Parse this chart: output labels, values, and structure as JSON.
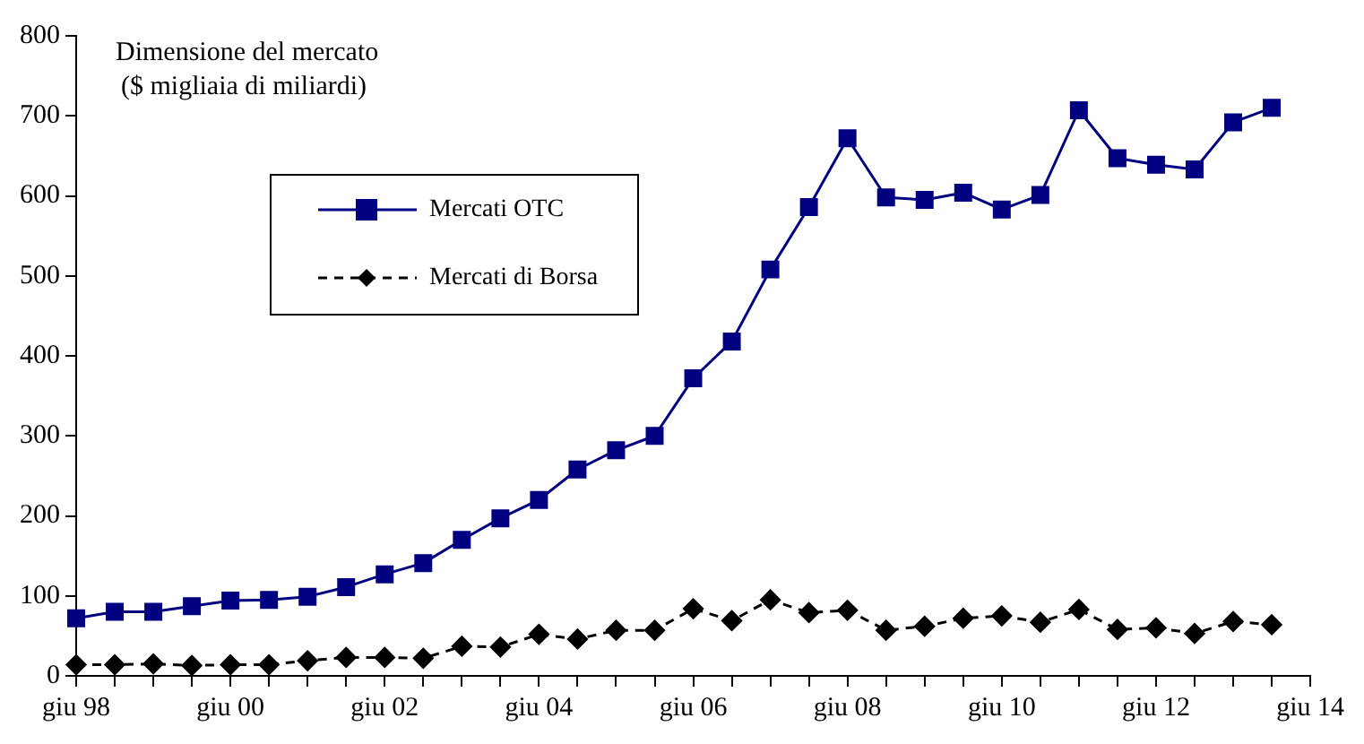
{
  "chart_data": {
    "type": "line",
    "ylabel": "Dimensione del mercato\n($ migliaia di miliardi)",
    "x": [
      "1998-06",
      "1998-12",
      "1999-06",
      "1999-12",
      "2000-06",
      "2000-12",
      "2001-06",
      "2001-12",
      "2002-06",
      "2002-12",
      "2003-06",
      "2003-12",
      "2004-06",
      "2004-12",
      "2005-06",
      "2005-12",
      "2006-06",
      "2006-12",
      "2007-06",
      "2007-12",
      "2008-06",
      "2008-12",
      "2009-06",
      "2009-12",
      "2010-06",
      "2010-12",
      "2011-06",
      "2011-12",
      "2012-06",
      "2012-12",
      "2013-06",
      "2013-12"
    ],
    "series": [
      {
        "name": "Mercati OTC",
        "color": "#000080",
        "marker": "square",
        "line_style": "solid",
        "values": [
          72,
          80,
          80,
          87,
          94,
          95,
          99,
          111,
          127,
          141,
          170,
          197,
          220,
          258,
          282,
          300,
          372,
          418,
          508,
          586,
          672,
          598,
          595,
          604,
          583,
          601,
          707,
          647,
          639,
          633,
          692,
          710
        ]
      },
      {
        "name": "Mercati di Borsa",
        "color": "#000000",
        "marker": "diamond",
        "line_style": "dashed",
        "values": [
          14,
          14,
          15,
          13,
          14,
          14,
          19,
          23,
          23,
          22,
          37,
          36,
          52,
          46,
          57,
          57,
          84,
          69,
          95,
          79,
          82,
          57,
          62,
          72,
          75,
          67,
          83,
          58,
          60,
          53,
          68,
          64
        ]
      }
    ],
    "xlim": [
      "1998-06",
      "2014-06"
    ],
    "xticks": [
      {
        "value": "1998-06",
        "label": "giu 98"
      },
      {
        "value": "1998-12",
        "label": null
      },
      {
        "value": "1999-06",
        "label": null
      },
      {
        "value": "1999-12",
        "label": null
      },
      {
        "value": "2000-06",
        "label": "giu 00"
      },
      {
        "value": "2000-12",
        "label": null
      },
      {
        "value": "2001-06",
        "label": null
      },
      {
        "value": "2001-12",
        "label": null
      },
      {
        "value": "2002-06",
        "label": "giu 02"
      },
      {
        "value": "2002-12",
        "label": null
      },
      {
        "value": "2003-06",
        "label": null
      },
      {
        "value": "2003-12",
        "label": null
      },
      {
        "value": "2004-06",
        "label": "giu 04"
      },
      {
        "value": "2004-12",
        "label": null
      },
      {
        "value": "2005-06",
        "label": null
      },
      {
        "value": "2005-12",
        "label": null
      },
      {
        "value": "2006-06",
        "label": "giu 06"
      },
      {
        "value": "2006-12",
        "label": null
      },
      {
        "value": "2007-06",
        "label": null
      },
      {
        "value": "2007-12",
        "label": null
      },
      {
        "value": "2008-06",
        "label": "giu 08"
      },
      {
        "value": "2008-12",
        "label": null
      },
      {
        "value": "2009-06",
        "label": null
      },
      {
        "value": "2009-12",
        "label": null
      },
      {
        "value": "2010-06",
        "label": "giu 10"
      },
      {
        "value": "2010-12",
        "label": null
      },
      {
        "value": "2011-06",
        "label": null
      },
      {
        "value": "2011-12",
        "label": null
      },
      {
        "value": "2012-06",
        "label": "giu 12"
      },
      {
        "value": "2012-12",
        "label": null
      },
      {
        "value": "2013-06",
        "label": null
      },
      {
        "value": "2013-12",
        "label": null
      },
      {
        "value": "2014-06",
        "label": "giu 14"
      }
    ],
    "ylim": [
      0,
      800
    ],
    "yticks": [
      0,
      100,
      200,
      300,
      400,
      500,
      600,
      700,
      800
    ],
    "grid": false,
    "legend": "top left"
  }
}
